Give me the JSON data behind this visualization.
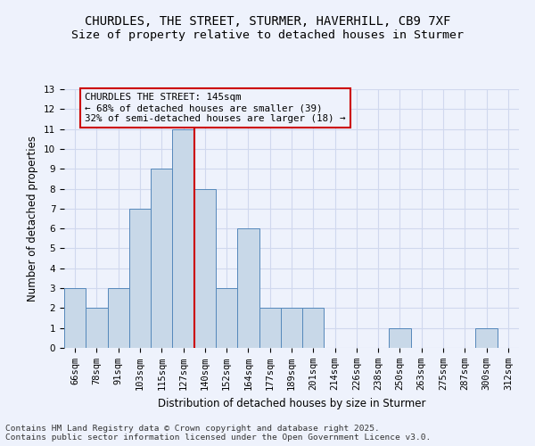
{
  "title": "CHURDLES, THE STREET, STURMER, HAVERHILL, CB9 7XF",
  "subtitle": "Size of property relative to detached houses in Sturmer",
  "xlabel": "Distribution of detached houses by size in Sturmer",
  "ylabel": "Number of detached properties",
  "footer_line1": "Contains HM Land Registry data © Crown copyright and database right 2025.",
  "footer_line2": "Contains public sector information licensed under the Open Government Licence v3.0.",
  "bins": [
    "66sqm",
    "78sqm",
    "91sqm",
    "103sqm",
    "115sqm",
    "127sqm",
    "140sqm",
    "152sqm",
    "164sqm",
    "177sqm",
    "189sqm",
    "201sqm",
    "214sqm",
    "226sqm",
    "238sqm",
    "250sqm",
    "263sqm",
    "275sqm",
    "287sqm",
    "300sqm",
    "312sqm"
  ],
  "values": [
    3,
    2,
    3,
    7,
    9,
    11,
    8,
    3,
    6,
    2,
    2,
    2,
    0,
    0,
    0,
    1,
    0,
    0,
    0,
    1,
    0
  ],
  "bar_color": "#c8d8e8",
  "bar_edge_color": "#5588bb",
  "grid_color": "#d0d8ee",
  "annotation_text": "CHURDLES THE STREET: 145sqm\n← 68% of detached houses are smaller (39)\n32% of semi-detached houses are larger (18) →",
  "annotation_box_edge": "#cc0000",
  "vline_x_index": 5.5,
  "vline_color": "#cc0000",
  "ylim": [
    0,
    13
  ],
  "yticks": [
    0,
    1,
    2,
    3,
    4,
    5,
    6,
    7,
    8,
    9,
    10,
    11,
    12,
    13
  ],
  "bg_color": "#eef2fc",
  "title_fontsize": 10,
  "subtitle_fontsize": 9.5,
  "axis_label_fontsize": 8.5,
  "tick_fontsize": 7.5,
  "footer_fontsize": 6.8,
  "annot_fontsize": 7.8
}
